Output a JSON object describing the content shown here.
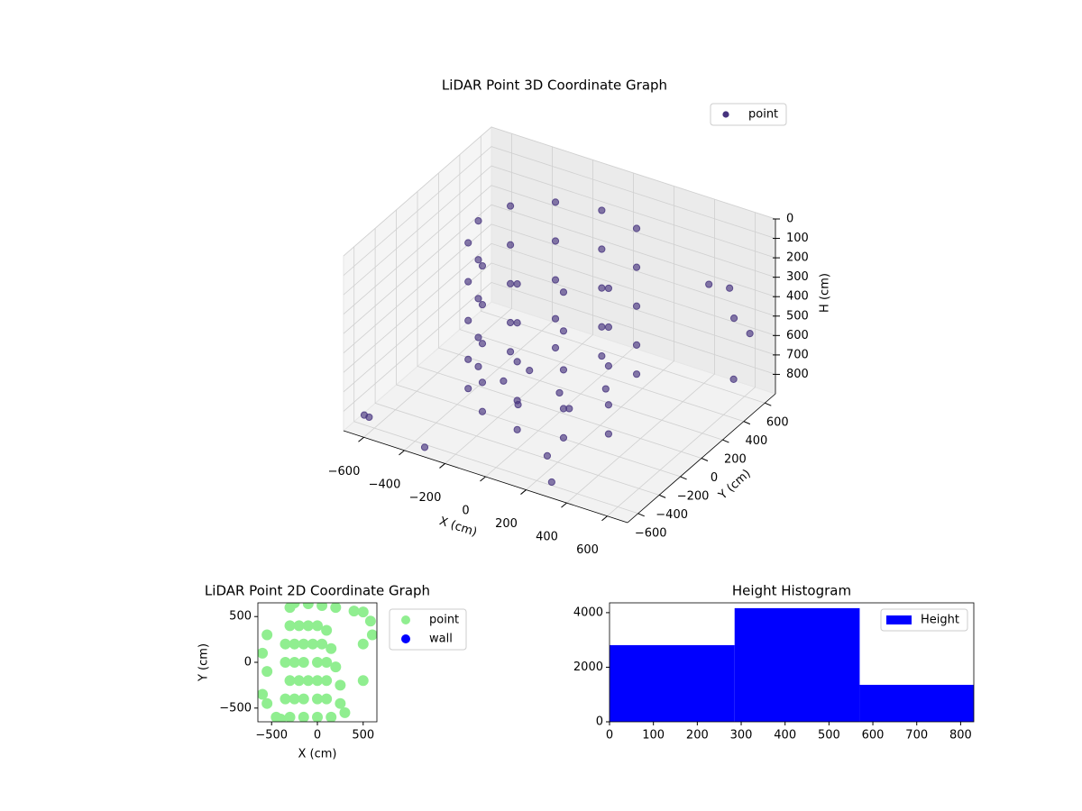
{
  "chart_data": [
    {
      "type": "scatter3d",
      "title": "LiDAR Point 3D Coordinate Graph",
      "xlabel": "X (cm)",
      "ylabel": "Y (cm)",
      "zlabel": "H (cm)",
      "xlim": [
        -700,
        700
      ],
      "ylim": [
        -700,
        700
      ],
      "zlim": [
        0,
        900
      ],
      "zinvert": true,
      "legend": "upper right",
      "xticks": [
        {
          "value": -600,
          "label": "−600"
        },
        {
          "value": -400,
          "label": "−400"
        },
        {
          "value": -200,
          "label": "−200"
        },
        0,
        200,
        400,
        600
      ],
      "yticks": [
        {
          "value": -600,
          "label": "−600"
        },
        {
          "value": -400,
          "label": "−400"
        },
        {
          "value": -200,
          "label": "−200"
        },
        0,
        200,
        400,
        600
      ],
      "zticks": [
        0,
        100,
        200,
        300,
        400,
        500,
        600,
        700,
        800
      ],
      "series": [
        {
          "name": "point",
          "color": "#46337e",
          "x": [
            200,
            0,
            -200,
            -346,
            -400,
            -346,
            -200,
            0,
            200,
            346,
            200,
            0,
            -200,
            -346,
            -400,
            -346,
            -200,
            0,
            200,
            346,
            200,
            0,
            -200,
            -346,
            -400,
            -346,
            -200,
            0,
            200,
            346,
            200,
            0,
            -200,
            -346,
            -400,
            -346,
            -200,
            0,
            200,
            346,
            200,
            0,
            -200,
            -346,
            -400,
            -346,
            -200,
            0,
            200,
            346,
            0,
            -200,
            100,
            -100,
            150,
            -250,
            -650,
            -600,
            500,
            600,
            650,
            300,
            -300,
            450,
            200,
            600
          ],
          "y": [
            346,
            400,
            346,
            200,
            0,
            -200,
            -346,
            -400,
            -346,
            -200,
            346,
            400,
            346,
            200,
            0,
            -200,
            -346,
            -400,
            -346,
            -200,
            346,
            400,
            346,
            200,
            0,
            -200,
            -346,
            -400,
            -346,
            -200,
            346,
            400,
            346,
            200,
            0,
            -200,
            -346,
            -400,
            -346,
            -200,
            346,
            400,
            346,
            200,
            0,
            -200,
            -346,
            -400,
            -346,
            -200,
            0,
            100,
            -100,
            -200,
            150,
            -50,
            -600,
            -650,
            650,
            500,
            400,
            -650,
            -700,
            550,
            -500,
            650
          ],
          "z": [
            50,
            50,
            50,
            50,
            50,
            50,
            50,
            50,
            50,
            50,
            250,
            250,
            250,
            250,
            250,
            250,
            250,
            250,
            250,
            250,
            450,
            450,
            450,
            450,
            450,
            450,
            450,
            450,
            450,
            450,
            650,
            650,
            650,
            650,
            650,
            650,
            650,
            650,
            650,
            650,
            800,
            800,
            800,
            800,
            800,
            800,
            800,
            800,
            800,
            800,
            800,
            800,
            800,
            800,
            800,
            800,
            850,
            820,
            400,
            450,
            700,
            850,
            850,
            350,
            820,
            600
          ]
        }
      ]
    },
    {
      "type": "scatter",
      "title": "LiDAR Point 2D Coordinate Graph",
      "xlabel": "X (cm)",
      "ylabel": "Y (cm)",
      "xlim": [
        -650,
        650
      ],
      "ylim": [
        -650,
        650
      ],
      "legend": "outside upper right",
      "xticks": [
        {
          "value": -500,
          "label": "−500"
        },
        0,
        500
      ],
      "yticks": [
        {
          "value": -500,
          "label": "−500"
        },
        0,
        500
      ],
      "series": [
        {
          "name": "point",
          "color": "#90ee90",
          "x": [
            -300,
            -250,
            -100,
            50,
            200,
            400,
            500,
            580,
            500,
            600,
            -550,
            -600,
            -550,
            -600,
            -550,
            -450,
            -400,
            -300,
            -200,
            -100,
            0,
            100,
            -350,
            -250,
            -150,
            -50,
            50,
            150,
            -350,
            -250,
            -150,
            0,
            100,
            200,
            -300,
            -200,
            -100,
            0,
            100,
            250,
            -350,
            -250,
            -150,
            0,
            100,
            250,
            -300,
            -150,
            0,
            150,
            300,
            500
          ],
          "y": [
            600,
            650,
            640,
            620,
            600,
            560,
            550,
            450,
            200,
            300,
            300,
            100,
            -100,
            -350,
            -450,
            -600,
            -620,
            400,
            400,
            400,
            400,
            350,
            200,
            200,
            200,
            200,
            200,
            150,
            0,
            0,
            0,
            0,
            0,
            -50,
            -200,
            -200,
            -200,
            -200,
            -200,
            -250,
            -400,
            -400,
            -400,
            -400,
            -400,
            -450,
            -600,
            -600,
            -600,
            -600,
            -550,
            -200
          ]
        },
        {
          "name": "wall",
          "color": "#0000ff",
          "x": [],
          "y": []
        }
      ]
    },
    {
      "type": "hist",
      "title": "Height Histogram",
      "xlim": [
        0,
        830
      ],
      "ylim": [
        0,
        4360
      ],
      "legend": "upper right",
      "xticks": [
        0,
        100,
        200,
        300,
        400,
        500,
        600,
        700,
        800
      ],
      "yticks": [
        0,
        2000,
        4000
      ],
      "series": [
        {
          "name": "Height",
          "color": "#0000ff",
          "bins": [
            0,
            285,
            570,
            830
          ],
          "values": [
            2810,
            4165,
            1355
          ]
        }
      ]
    }
  ]
}
